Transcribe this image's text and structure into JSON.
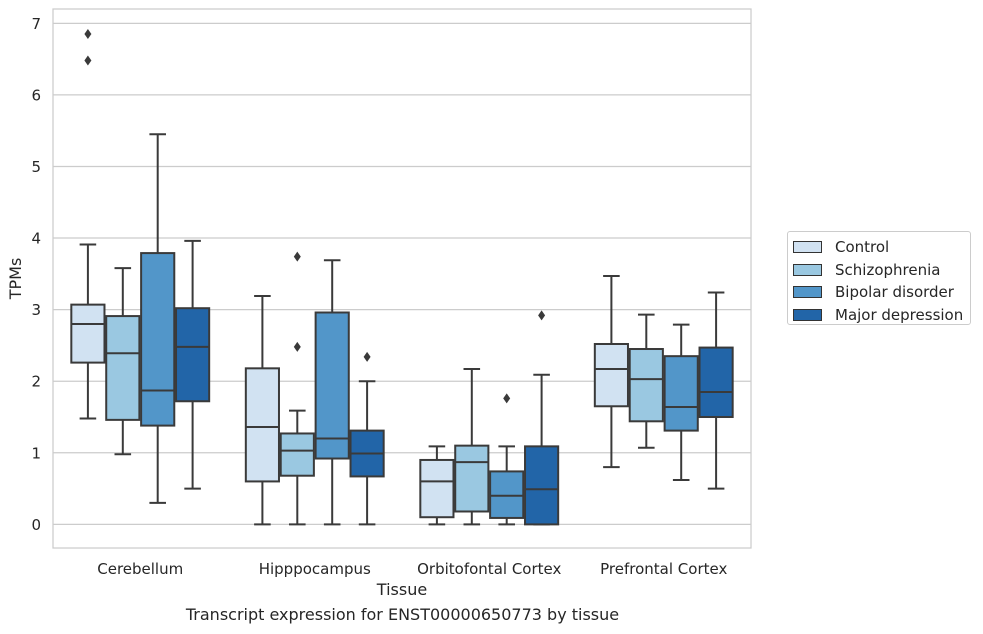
{
  "caption": "Transcript expression for ENST00000650773 by tissue",
  "chart_data": {
    "type": "box",
    "xlabel": "Tissue",
    "ylabel": "TPMs",
    "ylim": [
      -0.33,
      7.2
    ],
    "yticks": [
      0,
      1,
      2,
      3,
      4,
      5,
      6,
      7
    ],
    "grid": true,
    "legend_position": "right",
    "categories": [
      "Cerebellum",
      "Hipppocampus",
      "Orbitofontal Cortex",
      "Prefrontal Cortex"
    ],
    "series": [
      {
        "name": "Control",
        "color": "#d1e2f2",
        "boxes": [
          {
            "whislo": 1.48,
            "q1": 2.26,
            "med": 2.8,
            "q3": 3.07,
            "whishi": 3.91,
            "fliers": [
              6.48,
              6.85
            ]
          },
          {
            "whislo": 0.0,
            "q1": 0.6,
            "med": 1.36,
            "q3": 2.18,
            "whishi": 3.19,
            "fliers": []
          },
          {
            "whislo": 0.0,
            "q1": 0.1,
            "med": 0.6,
            "q3": 0.9,
            "whishi": 1.09,
            "fliers": []
          },
          {
            "whislo": 0.8,
            "q1": 1.65,
            "med": 2.17,
            "q3": 2.52,
            "whishi": 3.47,
            "fliers": []
          }
        ]
      },
      {
        "name": "Schizophrenia",
        "color": "#9ac8e1",
        "boxes": [
          {
            "whislo": 0.98,
            "q1": 1.46,
            "med": 2.39,
            "q3": 2.91,
            "whishi": 3.58,
            "fliers": []
          },
          {
            "whislo": 0.0,
            "q1": 0.68,
            "med": 1.03,
            "q3": 1.27,
            "whishi": 1.59,
            "fliers": [
              2.48,
              3.74
            ]
          },
          {
            "whislo": 0.0,
            "q1": 0.18,
            "med": 0.87,
            "q3": 1.1,
            "whishi": 2.17,
            "fliers": []
          },
          {
            "whislo": 1.07,
            "q1": 1.44,
            "med": 2.03,
            "q3": 2.45,
            "whishi": 2.93,
            "fliers": []
          }
        ]
      },
      {
        "name": "Bipolar disorder",
        "color": "#5296c9",
        "boxes": [
          {
            "whislo": 0.3,
            "q1": 1.38,
            "med": 1.87,
            "q3": 3.79,
            "whishi": 5.45,
            "fliers": []
          },
          {
            "whislo": 0.0,
            "q1": 0.92,
            "med": 1.2,
            "q3": 2.96,
            "whishi": 3.69,
            "fliers": []
          },
          {
            "whislo": 0.0,
            "q1": 0.09,
            "med": 0.4,
            "q3": 0.74,
            "whishi": 1.09,
            "fliers": [
              1.76
            ]
          },
          {
            "whislo": 0.62,
            "q1": 1.31,
            "med": 1.64,
            "q3": 2.35,
            "whishi": 2.79,
            "fliers": []
          }
        ]
      },
      {
        "name": "Major depression",
        "color": "#2265a8",
        "boxes": [
          {
            "whislo": 0.5,
            "q1": 1.72,
            "med": 2.48,
            "q3": 3.02,
            "whishi": 3.96,
            "fliers": []
          },
          {
            "whislo": 0.0,
            "q1": 0.67,
            "med": 0.99,
            "q3": 1.31,
            "whishi": 2.0,
            "fliers": [
              2.34
            ]
          },
          {
            "whislo": 0.0,
            "q1": 0.0,
            "med": 0.49,
            "q3": 1.09,
            "whishi": 2.09,
            "fliers": [
              2.92
            ]
          },
          {
            "whislo": 0.5,
            "q1": 1.5,
            "med": 1.85,
            "q3": 2.47,
            "whishi": 3.24,
            "fliers": []
          }
        ]
      }
    ]
  }
}
